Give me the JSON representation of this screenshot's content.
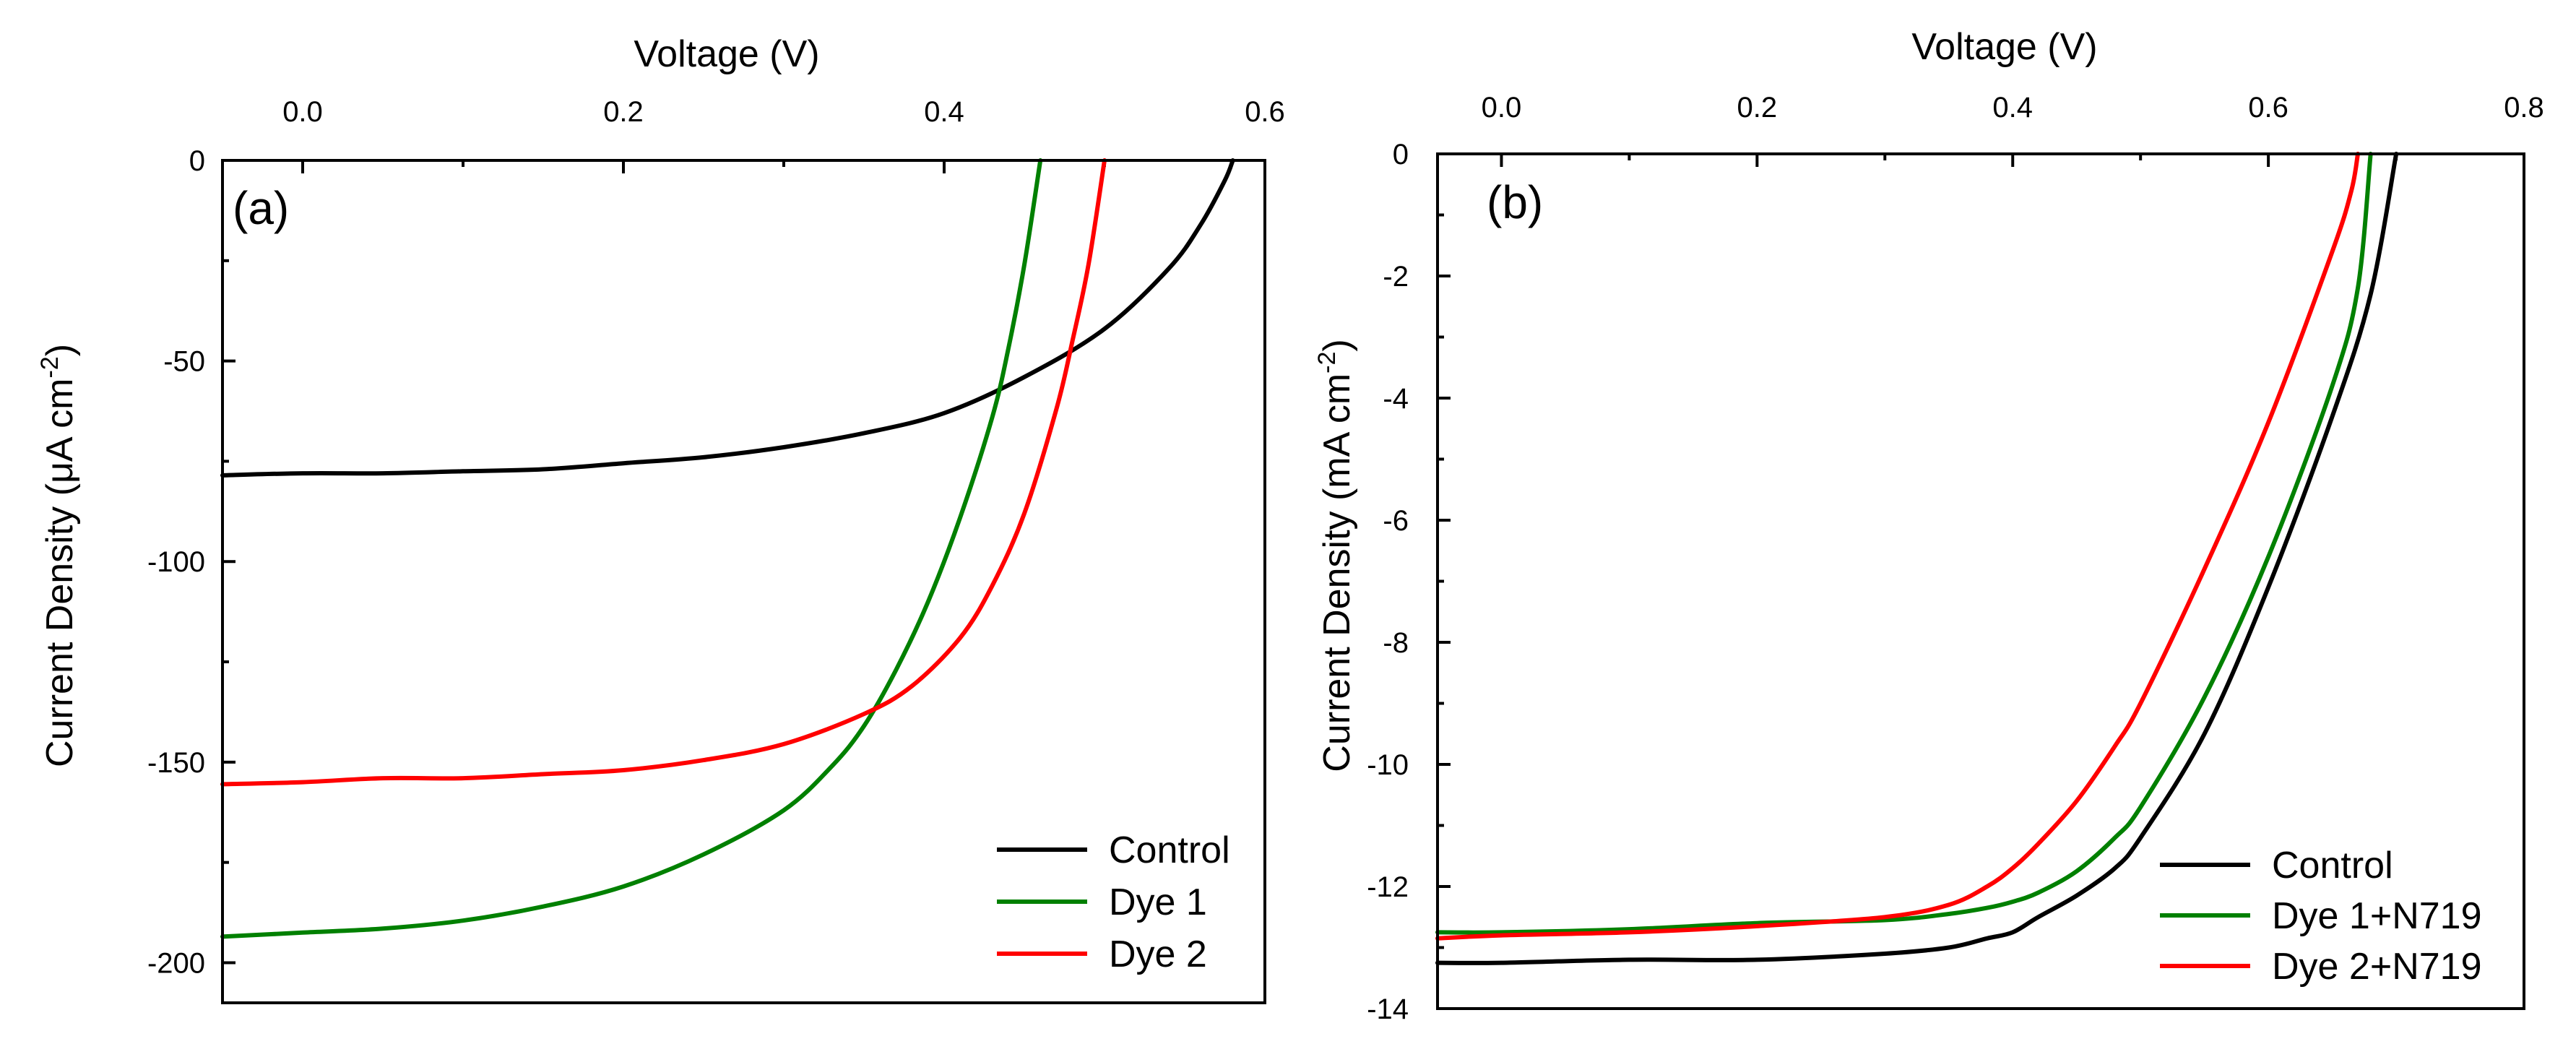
{
  "chart_data": [
    {
      "panel_label": "(a)",
      "type": "line",
      "title": "",
      "xlabel": "Voltage (V)",
      "xaxis_position": "top",
      "ylabel_parts": {
        "before": "Current Density (μA cm",
        "sup": "-2",
        "after": ")"
      },
      "xlim": [
        -0.05,
        0.6
      ],
      "ylim": [
        -210,
        0
      ],
      "xticks": [
        0.0,
        0.2,
        0.4,
        0.6
      ],
      "xtick_labels": [
        "0.0",
        "0.2",
        "0.4",
        "0.6"
      ],
      "yticks": [
        0,
        -50,
        -100,
        -150,
        -200
      ],
      "ytick_labels": [
        "0",
        "-50",
        "-100",
        "-150",
        "-200"
      ],
      "legend_position": "bottom-right",
      "series": [
        {
          "name": "Control",
          "color": "#000000",
          "x": [
            -0.05,
            0.0,
            0.05,
            0.1,
            0.15,
            0.2,
            0.25,
            0.3,
            0.35,
            0.4,
            0.45,
            0.5,
            0.54,
            0.56,
            0.575,
            0.58
          ],
          "y": [
            -78.5,
            -78,
            -78,
            -77.5,
            -77,
            -75.5,
            -74,
            -71.5,
            -68,
            -63,
            -54,
            -42,
            -27,
            -16,
            -5,
            0
          ]
        },
        {
          "name": "Dye 1",
          "color": "#008000",
          "x": [
            -0.05,
            0.0,
            0.05,
            0.1,
            0.15,
            0.2,
            0.25,
            0.3,
            0.33,
            0.35,
            0.37,
            0.39,
            0.41,
            0.43,
            0.44,
            0.45,
            0.46
          ],
          "y": [
            -193.5,
            -192.5,
            -191.5,
            -189.5,
            -186,
            -181,
            -173,
            -162,
            -151,
            -141,
            -127,
            -110,
            -89,
            -64,
            -47,
            -26,
            0
          ]
        },
        {
          "name": "Dye 2",
          "color": "#ff0000",
          "x": [
            -0.05,
            0.0,
            0.05,
            0.1,
            0.15,
            0.2,
            0.25,
            0.3,
            0.35,
            0.38,
            0.41,
            0.43,
            0.45,
            0.47,
            0.48,
            0.49,
            0.5
          ],
          "y": [
            -155.5,
            -155,
            -154,
            -154,
            -153,
            -152,
            -149.5,
            -145.5,
            -138,
            -131,
            -119,
            -106,
            -88,
            -62,
            -45,
            -26,
            0
          ]
        }
      ]
    },
    {
      "panel_label": "(b)",
      "type": "line",
      "title": "",
      "xlabel": "Voltage (V)",
      "xaxis_position": "top",
      "ylabel_parts": {
        "before": "Current Density (mA cm",
        "sup": "-2",
        "after": ")"
      },
      "xlim": [
        -0.05,
        0.8
      ],
      "ylim": [
        -14,
        0
      ],
      "xticks": [
        0.0,
        0.2,
        0.4,
        0.6,
        0.8
      ],
      "xtick_labels": [
        "0.0",
        "0.2",
        "0.4",
        "0.6",
        "0.8"
      ],
      "yticks": [
        0,
        -2,
        -4,
        -6,
        -8,
        -10,
        -12,
        -14
      ],
      "ytick_labels": [
        "0",
        "-2",
        "-4",
        "-6",
        "-8",
        "-10",
        "-12",
        "-14"
      ],
      "legend_position": "bottom-right",
      "series": [
        {
          "name": "Control",
          "color": "#000000",
          "x": [
            -0.05,
            0.0,
            0.1,
            0.2,
            0.3,
            0.35,
            0.38,
            0.4,
            0.42,
            0.45,
            0.48,
            0.5,
            0.55,
            0.6,
            0.65,
            0.68,
            0.7
          ],
          "y": [
            -13.25,
            -13.25,
            -13.2,
            -13.2,
            -13.1,
            -13.0,
            -12.85,
            -12.75,
            -12.5,
            -12.15,
            -11.7,
            -11.2,
            -9.5,
            -7.1,
            -4.3,
            -2.3,
            0
          ]
        },
        {
          "name": "Dye 1+N719",
          "color": "#008000",
          "x": [
            -0.05,
            0.0,
            0.1,
            0.2,
            0.3,
            0.35,
            0.38,
            0.4,
            0.42,
            0.45,
            0.48,
            0.5,
            0.55,
            0.6,
            0.65,
            0.67,
            0.68
          ],
          "y": [
            -12.75,
            -12.75,
            -12.7,
            -12.6,
            -12.55,
            -12.45,
            -12.35,
            -12.25,
            -12.1,
            -11.75,
            -11.2,
            -10.7,
            -8.9,
            -6.6,
            -3.8,
            -2.2,
            0
          ]
        },
        {
          "name": "Dye 2+N719",
          "color": "#ff0000",
          "x": [
            -0.05,
            0.0,
            0.1,
            0.2,
            0.3,
            0.35,
            0.38,
            0.4,
            0.42,
            0.45,
            0.48,
            0.5,
            0.55,
            0.6,
            0.65,
            0.665,
            0.67
          ],
          "y": [
            -12.85,
            -12.8,
            -12.75,
            -12.65,
            -12.5,
            -12.3,
            -12.0,
            -11.7,
            -11.3,
            -10.6,
            -9.7,
            -9.0,
            -6.8,
            -4.4,
            -1.6,
            -0.6,
            0
          ]
        }
      ]
    }
  ]
}
